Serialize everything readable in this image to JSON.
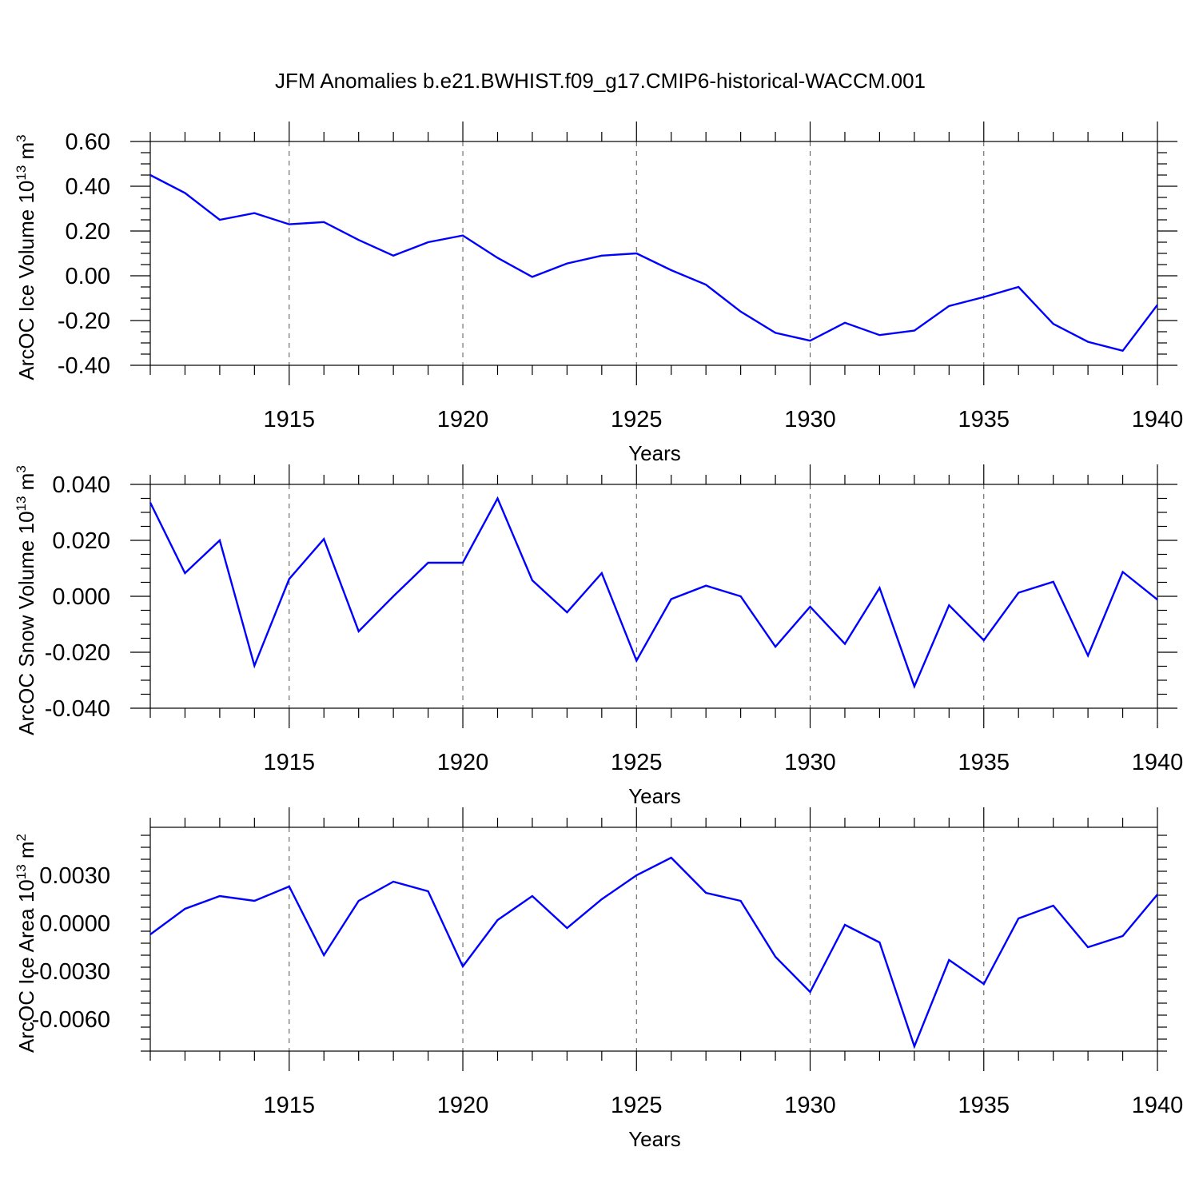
{
  "figure_title": "JFM Anomalies b.e21.BWHIST.f09_g17.CMIP6-historical-WACCM.001",
  "line_color": "#0000ff",
  "chart_data": [
    {
      "type": "line",
      "ylabel": "ArcOC Ice Volume 10",
      "ylabel_sup": "13",
      "ylabel_unit": " m",
      "ylabel_unit_sup": "3",
      "xlabel": "Years",
      "xlim": [
        1911,
        1940
      ],
      "ylim": [
        -0.4,
        0.6
      ],
      "x_ticks": [
        "1915",
        "1920",
        "1925",
        "1930",
        "1935",
        "1940"
      ],
      "y_ticks": [
        "0.60",
        "0.40",
        "0.20",
        "0.00",
        "-0.20",
        "-0.40"
      ],
      "x": [
        1911,
        1912,
        1913,
        1914,
        1915,
        1916,
        1917,
        1918,
        1919,
        1920,
        1921,
        1922,
        1923,
        1924,
        1925,
        1926,
        1927,
        1928,
        1929,
        1930,
        1931,
        1932,
        1933,
        1934,
        1935,
        1936,
        1937,
        1938,
        1939,
        1940
      ],
      "values": [
        0.45,
        0.37,
        0.25,
        0.28,
        0.23,
        0.24,
        0.16,
        0.09,
        0.15,
        0.18,
        0.08,
        -0.005,
        0.055,
        0.09,
        0.1,
        0.025,
        -0.04,
        -0.16,
        -0.255,
        -0.29,
        -0.21,
        -0.265,
        -0.245,
        -0.135,
        -0.095,
        -0.05,
        -0.215,
        -0.295,
        -0.335,
        -0.13
      ]
    },
    {
      "type": "line",
      "ylabel": "ArcOC Snow Volume 10",
      "ylabel_sup": "13",
      "ylabel_unit": " m",
      "ylabel_unit_sup": "3",
      "xlabel": "Years",
      "xlim": [
        1911,
        1940
      ],
      "ylim": [
        -0.04,
        0.04
      ],
      "x_ticks": [
        "1915",
        "1920",
        "1925",
        "1930",
        "1935",
        "1940"
      ],
      "y_ticks": [
        "0.040",
        "0.020",
        "0.000",
        "-0.020",
        "-0.040"
      ],
      "x": [
        1911,
        1912,
        1913,
        1914,
        1915,
        1916,
        1917,
        1918,
        1919,
        1920,
        1921,
        1922,
        1923,
        1924,
        1925,
        1926,
        1927,
        1928,
        1929,
        1930,
        1931,
        1932,
        1933,
        1934,
        1935,
        1936,
        1937,
        1938,
        1939,
        1940
      ],
      "values": [
        0.0335,
        0.0083,
        0.02,
        -0.0248,
        0.0062,
        0.0205,
        -0.0125,
        0.0,
        0.012,
        0.012,
        0.035,
        0.0057,
        -0.0057,
        0.0083,
        -0.023,
        -0.001,
        0.0038,
        0.0,
        -0.018,
        -0.0037,
        -0.017,
        0.003,
        -0.0322,
        -0.0032,
        -0.0157,
        0.0013,
        0.0052,
        -0.0212,
        0.0087,
        -0.0012
      ]
    },
    {
      "type": "line",
      "ylabel": "ArcOC Ice Area 10",
      "ylabel_sup": "13",
      "ylabel_unit": " m",
      "ylabel_unit_sup": "2",
      "xlabel": "Years",
      "xlim": [
        1911,
        1940
      ],
      "ylim": [
        -0.008,
        0.006
      ],
      "x_ticks": [
        "1915",
        "1920",
        "1925",
        "1930",
        "1935",
        "1940"
      ],
      "y_ticks": [
        "0.0030",
        "0.0000",
        "-0.0030",
        "-0.0060"
      ],
      "x": [
        1911,
        1912,
        1913,
        1914,
        1915,
        1916,
        1917,
        1918,
        1919,
        1920,
        1921,
        1922,
        1923,
        1924,
        1925,
        1926,
        1927,
        1928,
        1929,
        1930,
        1931,
        1932,
        1933,
        1934,
        1935,
        1936,
        1937,
        1938,
        1939,
        1940
      ],
      "values": [
        -0.0007,
        0.0009,
        0.0017,
        0.0014,
        0.0023,
        -0.002,
        0.0014,
        0.0026,
        0.002,
        -0.0027,
        0.0002,
        0.0017,
        -0.0003,
        0.0015,
        0.003,
        0.0041,
        0.0019,
        0.0014,
        -0.0021,
        -0.0043,
        -0.0001,
        -0.0012,
        -0.0077,
        -0.0023,
        -0.0038,
        0.0003,
        0.0011,
        -0.0015,
        -0.0008,
        0.0018
      ]
    }
  ]
}
